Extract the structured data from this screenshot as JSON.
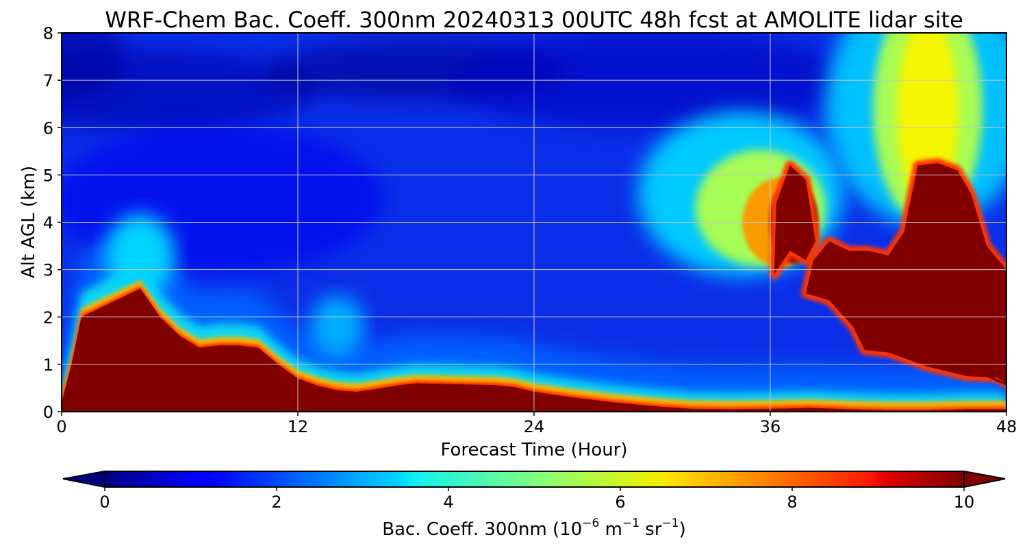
{
  "chart_data": {
    "type": "heatmap",
    "title": "WRF-Chem Bac. Coeff. 300nm  20240313 00UTC 48h fcst at AMOLITE lidar site",
    "xlabel": "Forecast Time (Hour)",
    "ylabel": "Alt AGL (km)",
    "xlim": [
      0,
      48
    ],
    "ylim": [
      0,
      8
    ],
    "xticks": [
      "0",
      "12",
      "24",
      "36",
      "48"
    ],
    "yticks": [
      "0",
      "1",
      "2",
      "3",
      "4",
      "5",
      "6",
      "7",
      "8"
    ],
    "grid": true,
    "colormap": "jet",
    "colorbar": {
      "label_main": "Bac. Coeff. 300nm  (10",
      "label_exp1": "−6",
      "label_mid": " m",
      "label_exp2": "−1",
      "label_mid2": " sr",
      "label_exp3": "−1",
      "label_end": ")",
      "range": [
        0,
        10
      ],
      "ticks": [
        "0",
        "2",
        "4",
        "6",
        "8",
        "10"
      ],
      "extend": "both"
    },
    "features": {
      "boundary_layer_top_km": [
        [
          0,
          0.2
        ],
        [
          0.5,
          1.0
        ],
        [
          1,
          2.0
        ],
        [
          2,
          2.2
        ],
        [
          3,
          2.4
        ],
        [
          4,
          2.6
        ],
        [
          5,
          2.0
        ],
        [
          6,
          1.6
        ],
        [
          7,
          1.35
        ],
        [
          8,
          1.4
        ],
        [
          9,
          1.4
        ],
        [
          10,
          1.35
        ],
        [
          11,
          1.0
        ],
        [
          12,
          0.7
        ],
        [
          13,
          0.55
        ],
        [
          14,
          0.45
        ],
        [
          15,
          0.42
        ],
        [
          16,
          0.48
        ],
        [
          17,
          0.55
        ],
        [
          18,
          0.6
        ],
        [
          20,
          0.58
        ],
        [
          22,
          0.56
        ],
        [
          23,
          0.52
        ],
        [
          24,
          0.42
        ],
        [
          26,
          0.3
        ],
        [
          28,
          0.2
        ],
        [
          30,
          0.12
        ],
        [
          32,
          0.06
        ],
        [
          34,
          0.05
        ],
        [
          36,
          0.06
        ],
        [
          38,
          0.08
        ],
        [
          40,
          0.05
        ],
        [
          42,
          0.03
        ],
        [
          44,
          0.03
        ],
        [
          46,
          0.05
        ],
        [
          48,
          0.05
        ]
      ],
      "elevated_plumes": [
        {
          "hours": [
            36,
            39
          ],
          "altitude_km": [
            2.6,
            5.2
          ],
          "peak_value": 10
        },
        {
          "hours": [
            38,
            48
          ],
          "altitude_km": [
            0.6,
            5.2
          ],
          "peak_value": 10
        },
        {
          "hours": [
            41,
            47
          ],
          "altitude_km": [
            5,
            8
          ],
          "peak_value": 6
        },
        {
          "hours": [
            31,
            38
          ],
          "altitude_km": [
            3,
            6
          ],
          "peak_value": 6
        }
      ]
    }
  }
}
